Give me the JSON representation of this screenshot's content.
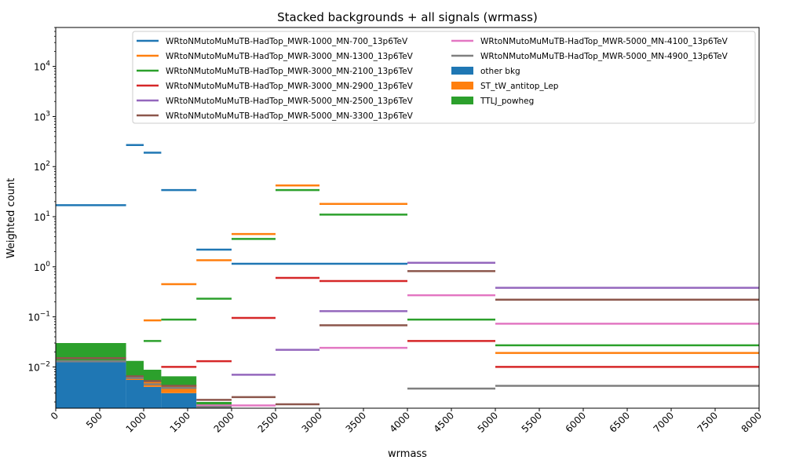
{
  "chart_data": {
    "type": "step-histogram",
    "title": "Stacked backgrounds + all signals (wrmass)",
    "xlabel": "wrmass",
    "ylabel": "Weighted count",
    "xlim": [
      0,
      8000
    ],
    "ylim": [
      0.0015,
      60000
    ],
    "yscale": "log",
    "grid": false,
    "legend_position": "top-right",
    "x_ticks": [
      0,
      500,
      1000,
      1500,
      2000,
      2500,
      3000,
      3500,
      4000,
      4500,
      5000,
      5500,
      6000,
      6500,
      7000,
      7500,
      8000
    ],
    "x_tick_labels": [
      "0",
      "500",
      "1000",
      "1500",
      "2000",
      "2500",
      "3000",
      "3500",
      "4000",
      "4500",
      "5000",
      "5500",
      "6000",
      "6500",
      "7000",
      "7500",
      "8000"
    ],
    "y_ticks": [
      0.01,
      0.1,
      1,
      10,
      100,
      1000,
      10000
    ],
    "y_tick_labels": [
      {
        "base": "10",
        "exp": "−2"
      },
      {
        "base": "10",
        "exp": "−1"
      },
      {
        "base": "10",
        "exp": "0"
      },
      {
        "base": "10",
        "exp": "1"
      },
      {
        "base": "10",
        "exp": "2"
      },
      {
        "base": "10",
        "exp": "3"
      },
      {
        "base": "10",
        "exp": "4"
      }
    ],
    "bin_edges": [
      0,
      800,
      1000,
      1200,
      1600,
      2000,
      2500,
      3000,
      4000,
      5000,
      8000
    ],
    "stacked_backgrounds": [
      {
        "name": "other bkg",
        "color": "#1f77b4",
        "values": [
          0.0125,
          0.0055,
          0.004,
          0.003,
          0.0015,
          null,
          null,
          null,
          null,
          null
        ]
      },
      {
        "name": "ST_tW_antitop_Lep",
        "color": "#ff7f0e",
        "values": [
          0.0005,
          0.0005,
          0.001,
          0.0012,
          0.0001,
          null,
          null,
          null,
          null,
          null
        ]
      },
      {
        "name": "TTLJ_powheg",
        "color": "#2ca02c",
        "values": [
          0.017,
          0.0072,
          0.0038,
          0.0023,
          0.0004,
          null,
          null,
          null,
          null,
          null
        ]
      }
    ],
    "signals": [
      {
        "name": "WRtoNMutoMuMuTB-HadTop_MWR-1000_MN-700_13p6TeV",
        "color": "#1f77b4",
        "values": [
          17,
          270,
          190,
          34,
          2.2,
          1.15,
          1.15,
          1.15,
          null,
          null
        ]
      },
      {
        "name": "WRtoNMutoMuMuTB-HadTop_MWR-3000_MN-1300_13p6TeV",
        "color": "#ff7f0e",
        "values": [
          null,
          null,
          0.085,
          0.45,
          1.35,
          4.5,
          42,
          18,
          null,
          0.019
        ]
      },
      {
        "name": "WRtoNMutoMuMuTB-HadTop_MWR-3000_MN-2100_13p6TeV",
        "color": "#2ca02c",
        "values": [
          null,
          null,
          0.033,
          0.088,
          0.23,
          3.6,
          34,
          11,
          0.088,
          0.027
        ]
      },
      {
        "name": "WRtoNMutoMuMuTB-HadTop_MWR-3000_MN-2900_13p6TeV",
        "color": "#d62728",
        "values": [
          null,
          null,
          null,
          0.01,
          0.013,
          0.095,
          0.6,
          0.52,
          0.033,
          0.01
        ]
      },
      {
        "name": "WRtoNMutoMuMuTB-HadTop_MWR-5000_MN-2500_13p6TeV",
        "color": "#9467bd",
        "values": [
          null,
          null,
          null,
          null,
          null,
          0.007,
          0.022,
          0.13,
          1.2,
          0.38
        ]
      },
      {
        "name": "WRtoNMutoMuMuTB-HadTop_MWR-5000_MN-3300_13p6TeV",
        "color": "#8c564b",
        "values": [
          0.015,
          0.0065,
          0.0052,
          0.0042,
          0.0022,
          0.0025,
          0.0018,
          0.068,
          0.82,
          0.22
        ]
      },
      {
        "name": "WRtoNMutoMuMuTB-HadTop_MWR-5000_MN-4100_13p6TeV",
        "color": "#e377c2",
        "values": [
          null,
          null,
          null,
          null,
          0.0017,
          0.0017,
          null,
          0.024,
          0.27,
          0.073
        ]
      },
      {
        "name": "WRtoNMutoMuMuTB-HadTop_MWR-5000_MN-4900_13p6TeV",
        "color": "#7f7f7f",
        "values": [
          0.013,
          0.006,
          0.0045,
          0.0038,
          0.0016,
          null,
          null,
          null,
          0.0037,
          0.0042
        ]
      }
    ],
    "legend": {
      "col1": [
        {
          "label": "WRtoNMutoMuMuTB-HadTop_MWR-1000_MN-700_13p6TeV",
          "kind": "line",
          "color": "#1f77b4"
        },
        {
          "label": "WRtoNMutoMuMuTB-HadTop_MWR-3000_MN-1300_13p6TeV",
          "kind": "line",
          "color": "#ff7f0e"
        },
        {
          "label": "WRtoNMutoMuMuTB-HadTop_MWR-3000_MN-2100_13p6TeV",
          "kind": "line",
          "color": "#2ca02c"
        },
        {
          "label": "WRtoNMutoMuMuTB-HadTop_MWR-3000_MN-2900_13p6TeV",
          "kind": "line",
          "color": "#d62728"
        },
        {
          "label": "WRtoNMutoMuMuTB-HadTop_MWR-5000_MN-2500_13p6TeV",
          "kind": "line",
          "color": "#9467bd"
        },
        {
          "label": "WRtoNMutoMuMuTB-HadTop_MWR-5000_MN-3300_13p6TeV",
          "kind": "line",
          "color": "#8c564b"
        }
      ],
      "col2": [
        {
          "label": "WRtoNMutoMuMuTB-HadTop_MWR-5000_MN-4100_13p6TeV",
          "kind": "line",
          "color": "#e377c2"
        },
        {
          "label": "WRtoNMutoMuMuTB-HadTop_MWR-5000_MN-4900_13p6TeV",
          "kind": "line",
          "color": "#7f7f7f"
        },
        {
          "label": "other bkg",
          "kind": "patch",
          "color": "#1f77b4"
        },
        {
          "label": "ST_tW_antitop_Lep",
          "kind": "patch",
          "color": "#ff7f0e"
        },
        {
          "label": "TTLJ_powheg",
          "kind": "patch",
          "color": "#2ca02c"
        }
      ]
    }
  }
}
